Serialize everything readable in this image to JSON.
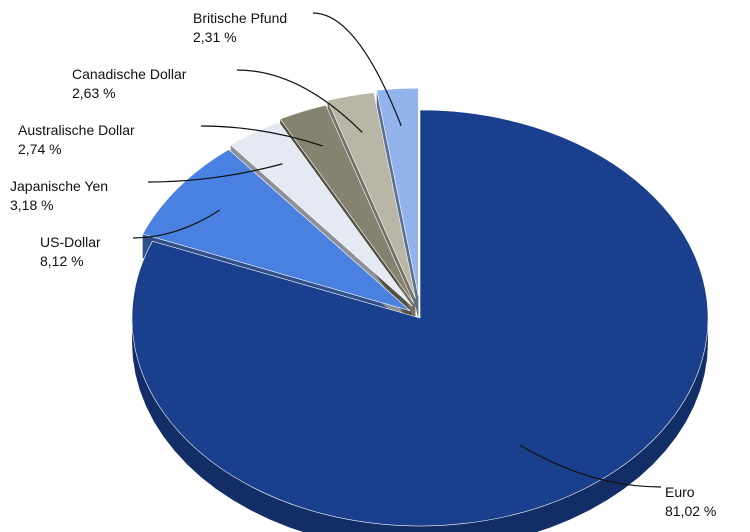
{
  "chart_data": {
    "type": "pie",
    "title": "",
    "categories": [
      "Euro",
      "US-Dollar",
      "Japanische Yen",
      "Australische Dollar",
      "Canadische Dollar",
      "Britische Pfund"
    ],
    "values": [
      81.02,
      8.12,
      3.18,
      2.74,
      2.63,
      2.31
    ],
    "value_labels": [
      "81,02 %",
      "8,12 %",
      "3,18 %",
      "2,74 %",
      "2,63 %",
      "2,31 %"
    ],
    "colors": [
      "#1a408d",
      "#4a80e0",
      "#e4e9f3",
      "#858270",
      "#b8b6a5",
      "#93b3ec"
    ],
    "legend": "none",
    "label_style": "callouts"
  }
}
